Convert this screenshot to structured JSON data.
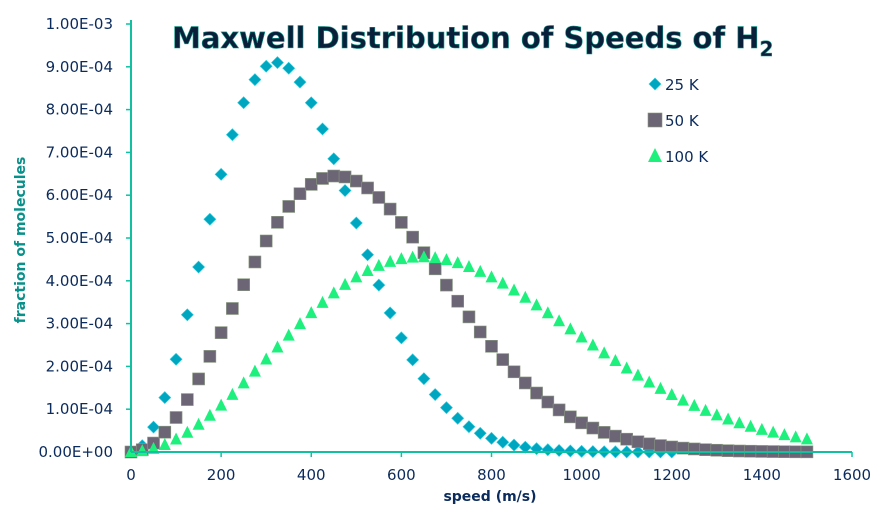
{
  "chart_data": {
    "type": "scatter",
    "title": "Maxwell Distribution of Speeds of H",
    "title_subscript": "2",
    "xlabel": "speed (m/s)",
    "ylabel": "fraction of molecules",
    "xlim": [
      0,
      1600
    ],
    "ylim": [
      0,
      0.001
    ],
    "xticks": [
      "0",
      "200",
      "400",
      "600",
      "800",
      "1000",
      "1200",
      "1400",
      "1600"
    ],
    "yticks": [
      "0.00E+00",
      "1.00E-04",
      "2.00E-04",
      "3.00E-04",
      "4.00E-04",
      "5.00E-04",
      "6.00E-04",
      "7.00E-04",
      "8.00E-04",
      "9.00E-04",
      "1.00E-03"
    ],
    "grid": false,
    "legend_position": "top-right",
    "axis_color": "#10c0a0",
    "series": [
      {
        "name": "25 K",
        "marker": "diamond",
        "color": "#00a5bf",
        "x": [
          0,
          25,
          50,
          75,
          100,
          125,
          150,
          175,
          200,
          225,
          250,
          275,
          300,
          325,
          350,
          375,
          400,
          425,
          450,
          475,
          500,
          525,
          550,
          575,
          600,
          625,
          650,
          675,
          700,
          725,
          750,
          775,
          800,
          825,
          850,
          875,
          900,
          925,
          950,
          975,
          1000,
          1025,
          1050,
          1075,
          1100,
          1125,
          1150,
          1175,
          1200
        ],
        "y": [
          0,
          1.48e-05,
          5.82e-05,
          0.0001271,
          0.0002166,
          0.0003206,
          0.0004321,
          0.0005438,
          0.0006488,
          0.0007413,
          0.0008161,
          0.00087,
          0.0009013,
          0.0009099,
          0.0008967,
          0.0008643,
          0.0008159,
          0.0007548,
          0.0006851,
          0.0006109,
          0.000535,
          0.0004608,
          0.00039,
          0.000325,
          0.0002667,
          0.0002153,
          0.0001713,
          0.0001342,
          0.0001036,
          7.88e-05,
          5.91e-05,
          4.37e-05,
          3.19e-05,
          2.29e-05,
          1.62e-05,
          1.13e-05,
          7.8e-06,
          5.3e-06,
          3.6e-06,
          2.4e-06,
          1.5e-06,
          1e-06,
          6e-07,
          4e-07,
          2e-07,
          1.5e-07,
          9e-08,
          5e-08,
          3e-08
        ]
      },
      {
        "name": "50 K",
        "marker": "square",
        "color": "#6b6575",
        "x": [
          0,
          25,
          50,
          75,
          100,
          125,
          150,
          175,
          200,
          225,
          250,
          275,
          300,
          325,
          350,
          375,
          400,
          425,
          450,
          475,
          500,
          525,
          550,
          575,
          600,
          625,
          650,
          675,
          700,
          725,
          750,
          775,
          800,
          825,
          850,
          875,
          900,
          925,
          950,
          975,
          1000,
          1025,
          1050,
          1075,
          1100,
          1125,
          1150,
          1175,
          1200,
          1225,
          1250,
          1275,
          1300,
          1325,
          1350,
          1375,
          1400,
          1425,
          1450,
          1475,
          1500
        ],
        "y": [
          0,
          5.3e-06,
          2.09e-05,
          4.63e-05,
          8.06e-05,
          0.0001225,
          0.0001707,
          0.0002234,
          0.0002789,
          0.0003353,
          0.0003909,
          0.000444,
          0.000493,
          0.0005366,
          0.0005737,
          0.0006035,
          0.0006253,
          0.0006391,
          0.0006448,
          0.0006426,
          0.0006331,
          0.0006169,
          0.0005947,
          0.0005676,
          0.0005364,
          0.000502,
          0.0004657,
          0.000428,
          0.00039,
          0.0003523,
          0.0003157,
          0.0002804,
          0.000247,
          0.0002159,
          0.0001874,
          0.0001613,
          0.0001378,
          0.0001168,
          9.83e-05,
          8.21e-05,
          6.81e-05,
          5.6e-05,
          4.58e-05,
          3.71e-05,
          2.99e-05,
          2.39e-05,
          1.9e-05,
          1.5e-05,
          1.17e-05,
          9.1e-06,
          7.1e-06,
          5.4e-06,
          4.1e-06,
          3.1e-06,
          2.3e-06,
          1.8e-06,
          1.3e-06,
          1e-06,
          7e-07,
          5e-07,
          4e-07
        ]
      },
      {
        "name": "100 K",
        "marker": "triangle",
        "color": "#1ef07e",
        "x": [
          0,
          25,
          50,
          75,
          100,
          125,
          150,
          175,
          200,
          225,
          250,
          275,
          300,
          325,
          350,
          375,
          400,
          425,
          450,
          475,
          500,
          525,
          550,
          575,
          600,
          625,
          650,
          675,
          700,
          725,
          750,
          775,
          800,
          825,
          850,
          875,
          900,
          925,
          950,
          975,
          1000,
          1025,
          1050,
          1075,
          1100,
          1125,
          1150,
          1175,
          1200,
          1225,
          1250,
          1275,
          1300,
          1325,
          1350,
          1375,
          1400,
          1425,
          1450,
          1475,
          1500
        ],
        "y": [
          0,
          1.9e-06,
          7.4e-06,
          1.65e-05,
          2.91e-05,
          4.49e-05,
          6.36e-05,
          8.48e-05,
          0.0001083,
          0.0001336,
          0.0001603,
          0.0001879,
          0.000216,
          0.0002442,
          0.0002719,
          0.0002988,
          0.0003244,
          0.0003485,
          0.0003706,
          0.0003905,
          0.000408,
          0.0004229,
          0.000435,
          0.0004443,
          0.0004507,
          0.0004542,
          0.0004549,
          0.0004529,
          0.0004483,
          0.0004414,
          0.0004322,
          0.0004209,
          0.0004079,
          0.0003933,
          0.0003774,
          0.0003604,
          0.0003426,
          0.0003242,
          0.0003055,
          0.0002865,
          0.0002675,
          0.0002487,
          0.0002304,
          0.0002125,
          0.000195,
          0.0001784,
          0.0001625,
          0.0001475,
          0.0001333,
          0.00012,
          0.0001077,
          9.62e-05,
          8.56e-05,
          7.59e-05,
          6.71e-05,
          5.91e-05,
          5.18e-05,
          4.53e-05,
          3.94e-05,
          3.42e-05,
          2.95e-05
        ]
      }
    ]
  }
}
